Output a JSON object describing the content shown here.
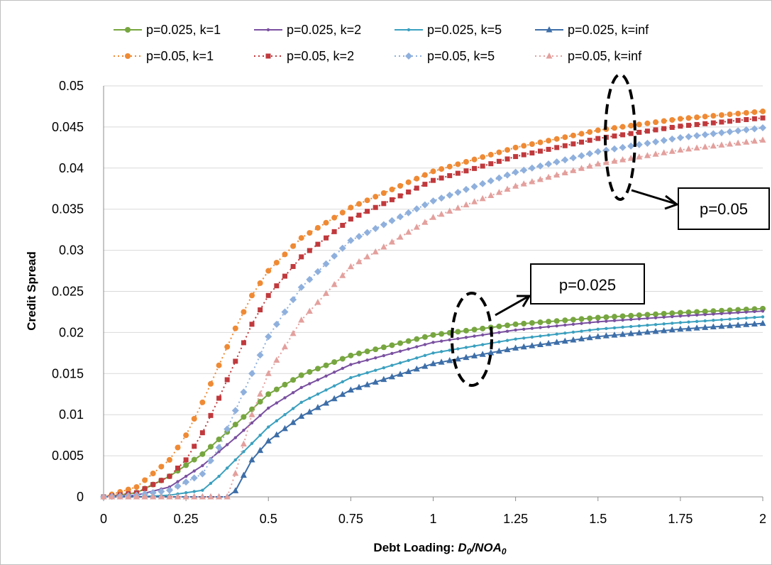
{
  "chart_data": {
    "type": "line",
    "xlabel_prefix": "Debt Loading: ",
    "xlabel_math": "D0/NOA0",
    "ylabel": "Credit Spread",
    "xlim": [
      0,
      2
    ],
    "ylim": [
      0,
      0.05
    ],
    "x_ticks": [
      "0",
      "0.25",
      "0.5",
      "0.75",
      "1",
      "1.25",
      "1.5",
      "1.75",
      "2"
    ],
    "y_ticks": [
      "0",
      "0.005",
      "0.01",
      "0.015",
      "0.02",
      "0.025",
      "0.03",
      "0.035",
      "0.04",
      "0.045",
      "0.05"
    ],
    "grid": "horizontal",
    "legend_position": "top",
    "series": [
      {
        "name": "p=0.025, k=1",
        "color": "#77a640",
        "style": "solid",
        "marker": "circle",
        "x": [
          0,
          0.1,
          0.2,
          0.3,
          0.4,
          0.5,
          0.6,
          0.75,
          1.0,
          1.25,
          1.5,
          1.75,
          2.0
        ],
        "y": [
          0,
          0.0005,
          0.0025,
          0.0052,
          0.0088,
          0.0125,
          0.0148,
          0.0172,
          0.0197,
          0.021,
          0.0218,
          0.0224,
          0.0229
        ]
      },
      {
        "name": "p=0.025, k=2",
        "color": "#7a50a0",
        "style": "solid",
        "marker": "plus",
        "x": [
          0,
          0.1,
          0.2,
          0.3,
          0.4,
          0.5,
          0.6,
          0.75,
          1.0,
          1.25,
          1.5,
          1.75,
          2.0
        ],
        "y": [
          0,
          0.0002,
          0.0012,
          0.0038,
          0.0072,
          0.0108,
          0.0133,
          0.0161,
          0.0188,
          0.0203,
          0.0213,
          0.022,
          0.0226
        ]
      },
      {
        "name": "p=0.025, k=5",
        "color": "#3aa0bf",
        "style": "solid",
        "marker": "plus",
        "x": [
          0,
          0.1,
          0.2,
          0.3,
          0.35,
          0.4,
          0.45,
          0.5,
          0.6,
          0.75,
          1.0,
          1.25,
          1.5,
          1.75,
          2.0
        ],
        "y": [
          0,
          0,
          0.0002,
          0.0008,
          0.0025,
          0.0045,
          0.0065,
          0.0085,
          0.0115,
          0.0145,
          0.0175,
          0.0192,
          0.0204,
          0.0212,
          0.0219
        ]
      },
      {
        "name": "p=0.025, k=inf",
        "color": "#3d6ea8",
        "style": "solid",
        "marker": "triangle",
        "x": [
          0,
          0.1,
          0.2,
          0.3,
          0.39,
          0.45,
          0.5,
          0.6,
          0.75,
          1.0,
          1.25,
          1.5,
          1.75,
          2.0
        ],
        "y": [
          0,
          0,
          0,
          0,
          0,
          0.0045,
          0.0068,
          0.0098,
          0.013,
          0.0162,
          0.0181,
          0.0195,
          0.0204,
          0.0211
        ]
      },
      {
        "name": "p=0.05, k=1",
        "color": "#ef8a34",
        "style": "dotted",
        "marker": "circle",
        "x": [
          0,
          0.1,
          0.2,
          0.25,
          0.3,
          0.35,
          0.4,
          0.45,
          0.5,
          0.6,
          0.75,
          1.0,
          1.25,
          1.5,
          1.75,
          2.0
        ],
        "y": [
          0,
          0.0012,
          0.0045,
          0.0075,
          0.0115,
          0.016,
          0.0205,
          0.0245,
          0.0275,
          0.0315,
          0.0352,
          0.0396,
          0.0425,
          0.0446,
          0.046,
          0.0469
        ]
      },
      {
        "name": "p=0.05, k=2",
        "color": "#c0393c",
        "style": "dotted",
        "marker": "square",
        "x": [
          0,
          0.1,
          0.2,
          0.25,
          0.3,
          0.35,
          0.4,
          0.45,
          0.5,
          0.6,
          0.75,
          1.0,
          1.25,
          1.5,
          1.75,
          2.0
        ],
        "y": [
          0,
          0.0005,
          0.0025,
          0.0045,
          0.0078,
          0.012,
          0.0165,
          0.021,
          0.0245,
          0.0292,
          0.0338,
          0.0385,
          0.0414,
          0.0436,
          0.0451,
          0.0461
        ]
      },
      {
        "name": "p=0.05, k=5",
        "color": "#8fb0dd",
        "style": "dotted",
        "marker": "diamond",
        "x": [
          0,
          0.1,
          0.2,
          0.3,
          0.35,
          0.4,
          0.45,
          0.5,
          0.6,
          0.75,
          1.0,
          1.25,
          1.5,
          1.75,
          2.0
        ],
        "y": [
          0,
          0.0002,
          0.0008,
          0.0028,
          0.006,
          0.0105,
          0.015,
          0.0195,
          0.0255,
          0.0312,
          0.036,
          0.0395,
          0.042,
          0.0437,
          0.0449
        ]
      },
      {
        "name": "p=0.05, k=inf",
        "color": "#e3a09d",
        "style": "dotted",
        "marker": "triangle",
        "x": [
          0,
          0.1,
          0.2,
          0.3,
          0.38,
          0.45,
          0.5,
          0.6,
          0.75,
          1.0,
          1.25,
          1.5,
          1.75,
          2.0
        ],
        "y": [
          0,
          0,
          0,
          0,
          0,
          0.01,
          0.015,
          0.0215,
          0.028,
          0.034,
          0.0378,
          0.0405,
          0.0422,
          0.0434
        ]
      }
    ],
    "annotations": [
      {
        "label": "p=0.05"
      },
      {
        "label": "p=0.025"
      }
    ]
  }
}
